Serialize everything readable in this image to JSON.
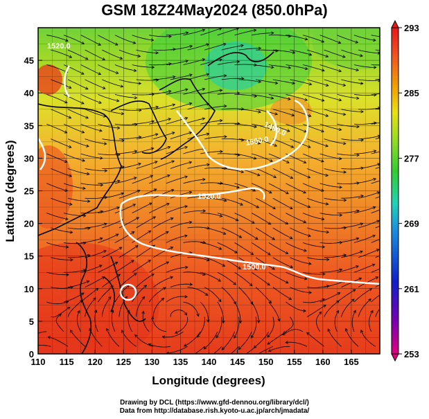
{
  "title": "GSM 18Z24May2024 (850.0hPa)",
  "xaxis": {
    "label": "Longitude (degrees)",
    "range": [
      110,
      170
    ],
    "ticks": [
      "110",
      "115",
      "120",
      "125",
      "130",
      "135",
      "140",
      "145",
      "150",
      "155",
      "160",
      "165"
    ]
  },
  "yaxis": {
    "label": "Latitude  (degrees)",
    "range": [
      0,
      50
    ],
    "ticks": [
      "0",
      "5",
      "10",
      "15",
      "20",
      "25",
      "30",
      "35",
      "40",
      "45"
    ]
  },
  "colorbar": {
    "ticks": [
      "293",
      "285",
      "277",
      "269",
      "261",
      "253"
    ],
    "range": [
      253,
      293
    ],
    "colors": [
      "#e0007f",
      "#7a00b0",
      "#1020c8",
      "#1a8fe0",
      "#1fd2b8",
      "#33cc33",
      "#99dd22",
      "#e8e010",
      "#f0a000",
      "#f05020",
      "#e81818"
    ]
  },
  "contour_labels": [
    "1520.0",
    "1500.0",
    "1480.0",
    "1500.0",
    "1520.0"
  ],
  "credits": [
    "Drawing by DCL (https://www.gfd-dennou.org/library/dcl/)",
    "Data from http://database.rish.kyoto-u.ac.jp/arch/jmadata/"
  ]
}
